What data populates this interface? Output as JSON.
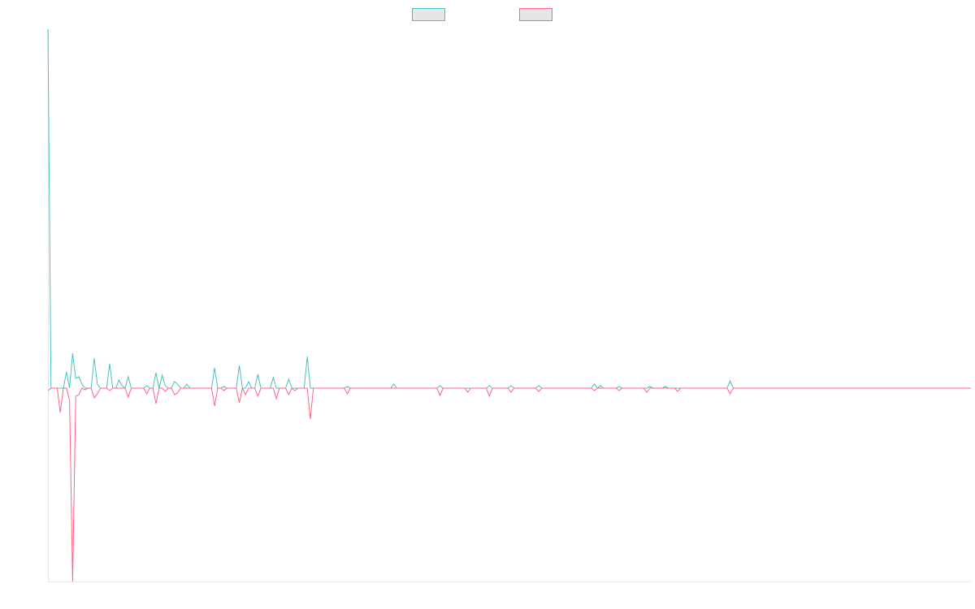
{
  "chart_data": {
    "type": "line",
    "ylim": [
      -238,
      442
    ],
    "grid": false,
    "legend": "top",
    "series": [
      {
        "color": "#4bc0c0",
        "values": [
          442,
          0,
          0,
          0,
          0,
          0,
          20,
          0,
          43,
          12,
          14,
          5,
          0,
          0,
          0,
          37,
          5,
          0,
          0,
          0,
          30,
          0,
          0,
          10,
          3,
          0,
          14,
          0,
          0,
          0,
          0,
          0,
          3,
          0,
          0,
          19,
          0,
          16,
          3,
          0,
          0,
          8,
          5,
          0,
          0,
          5,
          0,
          0,
          0,
          0,
          0,
          0,
          0,
          0,
          25,
          0,
          0,
          2,
          0,
          0,
          0,
          0,
          28,
          0,
          0,
          8,
          0,
          0,
          17,
          0,
          0,
          0,
          0,
          13,
          0,
          0,
          0,
          0,
          11,
          0,
          0,
          0,
          0,
          0,
          39,
          0,
          0,
          0,
          0,
          0,
          0,
          0,
          0,
          0,
          0,
          0,
          0,
          2,
          0,
          0,
          0,
          0,
          0,
          0,
          0,
          0,
          0,
          0,
          0,
          0,
          0,
          0,
          5,
          0,
          0,
          0,
          0,
          0,
          0,
          0,
          0,
          0,
          0,
          0,
          0,
          0,
          0,
          3,
          0,
          0,
          0,
          0,
          0,
          0,
          0,
          0,
          0,
          0,
          0,
          0,
          0,
          0,
          0,
          3,
          0,
          0,
          0,
          0,
          0,
          0,
          3,
          0,
          0,
          0,
          0,
          0,
          0,
          0,
          0,
          3,
          0,
          0,
          0,
          0,
          0,
          0,
          0,
          0,
          0,
          0,
          0,
          0,
          0,
          0,
          0,
          0,
          0,
          5,
          0,
          3,
          0,
          0,
          0,
          0,
          0,
          2,
          0,
          0,
          0,
          0,
          0,
          0,
          0,
          0,
          0,
          2,
          0,
          0,
          0,
          0,
          2,
          0,
          0,
          0,
          0,
          0,
          0,
          0,
          0,
          0,
          0,
          0,
          0,
          0,
          0,
          0,
          0,
          0,
          0,
          0,
          0,
          9,
          0,
          0,
          0,
          0,
          0,
          0,
          0,
          0,
          0,
          0,
          0,
          0,
          0,
          0,
          0,
          0,
          0,
          0,
          0,
          0,
          0,
          0,
          0,
          0,
          0,
          0,
          0,
          0,
          0,
          0,
          0,
          0,
          0,
          0,
          0,
          0,
          0,
          0,
          0,
          0,
          0,
          0,
          0,
          0,
          0,
          0,
          0,
          0,
          0,
          0,
          0,
          0,
          0,
          0,
          0,
          0,
          0,
          0,
          0,
          0,
          0,
          0,
          0,
          0,
          0,
          0,
          0,
          0,
          0,
          0,
          0,
          0,
          0,
          0,
          0,
          0,
          0,
          0
        ]
      },
      {
        "color": "#ff6384",
        "values": [
          -3,
          0,
          0,
          0,
          -30,
          0,
          0,
          -15,
          -238,
          -10,
          -8,
          0,
          -2,
          0,
          0,
          -12,
          -7,
          0,
          0,
          0,
          -3,
          0,
          0,
          0,
          0,
          0,
          -11,
          0,
          0,
          0,
          0,
          0,
          -7,
          0,
          0,
          -19,
          0,
          0,
          -4,
          0,
          0,
          -8,
          -6,
          0,
          0,
          0,
          0,
          0,
          0,
          0,
          0,
          0,
          0,
          0,
          -22,
          0,
          0,
          -3,
          0,
          0,
          0,
          0,
          -18,
          0,
          -8,
          0,
          0,
          0,
          -10,
          0,
          0,
          0,
          0,
          0,
          -13,
          0,
          0,
          0,
          -8,
          0,
          -3,
          0,
          0,
          0,
          0,
          -38,
          0,
          0,
          0,
          0,
          0,
          0,
          0,
          0,
          0,
          0,
          0,
          -7,
          0,
          0,
          0,
          0,
          0,
          0,
          0,
          0,
          0,
          0,
          0,
          0,
          0,
          0,
          0,
          0,
          0,
          0,
          0,
          0,
          0,
          0,
          0,
          0,
          0,
          0,
          0,
          0,
          0,
          -9,
          0,
          0,
          0,
          0,
          0,
          0,
          0,
          0,
          -5,
          0,
          0,
          0,
          0,
          0,
          0,
          -10,
          0,
          0,
          0,
          0,
          0,
          0,
          -5,
          0,
          0,
          0,
          0,
          0,
          0,
          0,
          0,
          -4,
          0,
          0,
          0,
          0,
          0,
          0,
          0,
          0,
          0,
          0,
          0,
          0,
          0,
          0,
          0,
          0,
          0,
          -3,
          0,
          0,
          0,
          0,
          0,
          0,
          0,
          -3,
          0,
          0,
          0,
          0,
          0,
          0,
          0,
          0,
          -5,
          0,
          0,
          0,
          0,
          0,
          0,
          0,
          0,
          0,
          -4,
          0,
          0,
          0,
          0,
          0,
          0,
          0,
          0,
          0,
          0,
          0,
          0,
          0,
          0,
          0,
          0,
          -7,
          0,
          0,
          0,
          0,
          0,
          0,
          0,
          0,
          0,
          0,
          0,
          0,
          0,
          0,
          0,
          0,
          0,
          0,
          0,
          0,
          0,
          0,
          0,
          0,
          0,
          0,
          0,
          0,
          0,
          0,
          0,
          0,
          0,
          0,
          0,
          0,
          0,
          0,
          0,
          0,
          0,
          0,
          0,
          0,
          0,
          0,
          0,
          0,
          0,
          0,
          0,
          0,
          0,
          0,
          0,
          0,
          0,
          0,
          0,
          0,
          0,
          0,
          0,
          0,
          0,
          0,
          0,
          0,
          0,
          0,
          0,
          0,
          0,
          0,
          0,
          0,
          0,
          0
        ]
      }
    ]
  }
}
